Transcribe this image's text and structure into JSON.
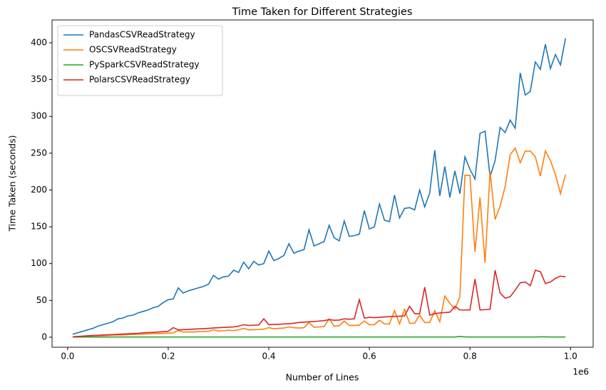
{
  "chart_data": {
    "type": "line",
    "title": "Time Taken for Different Strategies",
    "x_label": "Number of Lines",
    "y_label": "Time Taken (seconds)",
    "x_offset_label": "1e6",
    "legend": "upper left",
    "x": [
      10000,
      20000,
      30000,
      40000,
      50000,
      60000,
      70000,
      80000,
      90000,
      100000,
      110000,
      120000,
      130000,
      140000,
      150000,
      160000,
      170000,
      180000,
      190000,
      200000,
      210000,
      220000,
      230000,
      240000,
      250000,
      260000,
      270000,
      280000,
      290000,
      300000,
      310000,
      320000,
      330000,
      340000,
      350000,
      360000,
      370000,
      380000,
      390000,
      400000,
      410000,
      420000,
      430000,
      440000,
      450000,
      460000,
      470000,
      480000,
      490000,
      500000,
      510000,
      520000,
      530000,
      540000,
      550000,
      560000,
      570000,
      580000,
      590000,
      600000,
      610000,
      620000,
      630000,
      640000,
      650000,
      660000,
      670000,
      680000,
      690000,
      700000,
      710000,
      720000,
      730000,
      740000,
      750000,
      760000,
      770000,
      780000,
      790000,
      800000,
      810000,
      820000,
      830000,
      840000,
      850000,
      860000,
      870000,
      880000,
      890000,
      900000,
      910000,
      920000,
      930000,
      940000,
      950000,
      960000,
      970000,
      980000,
      990000
    ],
    "series": [
      {
        "name": "PandasCSVReadStrategy",
        "color": "#1f77b4",
        "values": [
          4,
          6,
          8,
          10,
          12,
          15,
          17,
          19,
          21,
          25,
          26,
          29,
          30,
          33,
          35,
          37,
          40,
          42,
          47,
          51,
          52,
          67,
          60,
          63,
          65,
          67,
          69,
          72,
          84,
          79,
          82,
          83,
          91,
          88,
          102,
          93,
          103,
          98,
          100,
          117,
          104,
          107,
          111,
          127,
          114,
          117,
          119,
          146,
          124,
          127,
          130,
          152,
          135,
          131,
          158,
          137,
          138,
          140,
          172,
          147,
          150,
          181,
          159,
          157,
          193,
          162,
          175,
          176,
          173,
          200,
          177,
          196,
          254,
          192,
          232,
          190,
          226,
          195,
          245,
          228,
          215,
          277,
          280,
          218,
          240,
          285,
          278,
          295,
          284,
          359,
          329,
          334,
          374,
          364,
          398,
          365,
          384,
          370,
          406
        ]
      },
      {
        "name": "OSCSVReadStrategy",
        "color": "#ff7f0e",
        "values": [
          0.5,
          1,
          1.2,
          1.5,
          1.8,
          2,
          2.2,
          2.5,
          2.8,
          3,
          3.2,
          3.5,
          3.8,
          4,
          4.2,
          4.5,
          4.8,
          5,
          5.2,
          5.5,
          5.8,
          9,
          7,
          7,
          7.2,
          7.5,
          7.8,
          8,
          10,
          8.5,
          8.8,
          9.5,
          9,
          10,
          12,
          10,
          10.2,
          10.5,
          11,
          13,
          11.5,
          12,
          12.5,
          14,
          13,
          12.5,
          13,
          20,
          13.5,
          14,
          14.5,
          25,
          15,
          15.5,
          22,
          16,
          16,
          16.5,
          22,
          17,
          17,
          23,
          18,
          18,
          36,
          18,
          38,
          19,
          19,
          30,
          20,
          20,
          36,
          21,
          56,
          46,
          38,
          55,
          220,
          220,
          116,
          190,
          101,
          225,
          160,
          178,
          205,
          248,
          257,
          237,
          253,
          253,
          245,
          219,
          253,
          240,
          221,
          195,
          221
        ]
      },
      {
        "name": "PySparkCSVReadStrategy",
        "color": "#2ca02c",
        "values": [
          0.3,
          0.3,
          0.3,
          0.3,
          0.3,
          0.3,
          0.3,
          0.3,
          0.3,
          0.3,
          0.3,
          0.3,
          0.3,
          0.3,
          0.3,
          0.3,
          0.3,
          0.3,
          0.3,
          0.3,
          0.3,
          0.3,
          0.3,
          0.3,
          0.3,
          0.3,
          0.3,
          0.3,
          0.3,
          0.3,
          0.3,
          0.3,
          0.3,
          0.3,
          0.3,
          0.3,
          0.3,
          0.3,
          0.3,
          0.3,
          0.3,
          0.3,
          0.3,
          0.3,
          0.3,
          0.3,
          0.3,
          0.3,
          0.3,
          0.3,
          0.3,
          0.3,
          0.3,
          0.3,
          0.3,
          0.3,
          0.3,
          0.3,
          0.3,
          0.3,
          0.3,
          0.3,
          0.3,
          0.3,
          0.3,
          0.3,
          0.3,
          0.3,
          0.3,
          0.3,
          0.3,
          0.3,
          0.3,
          0.3,
          0.3,
          0.3,
          0.3,
          1,
          0.5,
          0.3,
          0.3,
          0.3,
          0.3,
          0.3,
          0.3,
          0.3,
          0.3,
          0.3,
          0.3,
          0.3,
          0.3,
          0.3,
          0.3,
          0.5,
          0.5,
          0.3,
          0.3,
          0.3,
          0.4
        ]
      },
      {
        "name": "PolarsCSVReadStrategy",
        "color": "#d62728",
        "values": [
          0.5,
          1,
          1.5,
          2,
          2.3,
          2.6,
          3,
          3.3,
          3.6,
          4,
          4.3,
          4.6,
          5,
          5.3,
          6,
          6.3,
          6.6,
          7,
          7.5,
          8,
          13,
          10,
          10.3,
          10.6,
          11,
          11.3,
          11.6,
          12,
          12.5,
          13,
          13.3,
          13.6,
          14,
          15,
          17,
          16,
          16.3,
          16.6,
          25,
          17,
          17.3,
          17.6,
          18,
          18.3,
          19,
          20,
          20.5,
          21,
          21.3,
          22,
          22.5,
          24,
          23,
          23.3,
          25,
          24.5,
          25,
          51,
          26,
          27,
          26.5,
          27,
          27.5,
          28,
          28.3,
          28.6,
          29,
          42,
          32,
          32,
          68,
          30,
          32,
          33,
          33.5,
          34,
          42,
          37,
          37,
          37,
          79,
          37,
          37.5,
          38,
          91,
          60,
          53,
          55,
          64,
          74,
          75,
          70,
          91,
          89,
          73,
          75,
          80,
          83,
          82
        ]
      }
    ],
    "xlim": [
      -31000,
      1045000
    ],
    "xticks": [
      {
        "value": 0,
        "label": "0.0"
      },
      {
        "value": 200000,
        "label": "0.2"
      },
      {
        "value": 400000,
        "label": "0.4"
      },
      {
        "value": 600000,
        "label": "0.6"
      },
      {
        "value": 800000,
        "label": "0.8"
      },
      {
        "value": 1000000,
        "label": "1.0"
      }
    ],
    "ylim": [
      -13.6,
      431
    ],
    "yticks": [
      0,
      50,
      100,
      150,
      200,
      250,
      300,
      350,
      400
    ],
    "grid": false
  }
}
